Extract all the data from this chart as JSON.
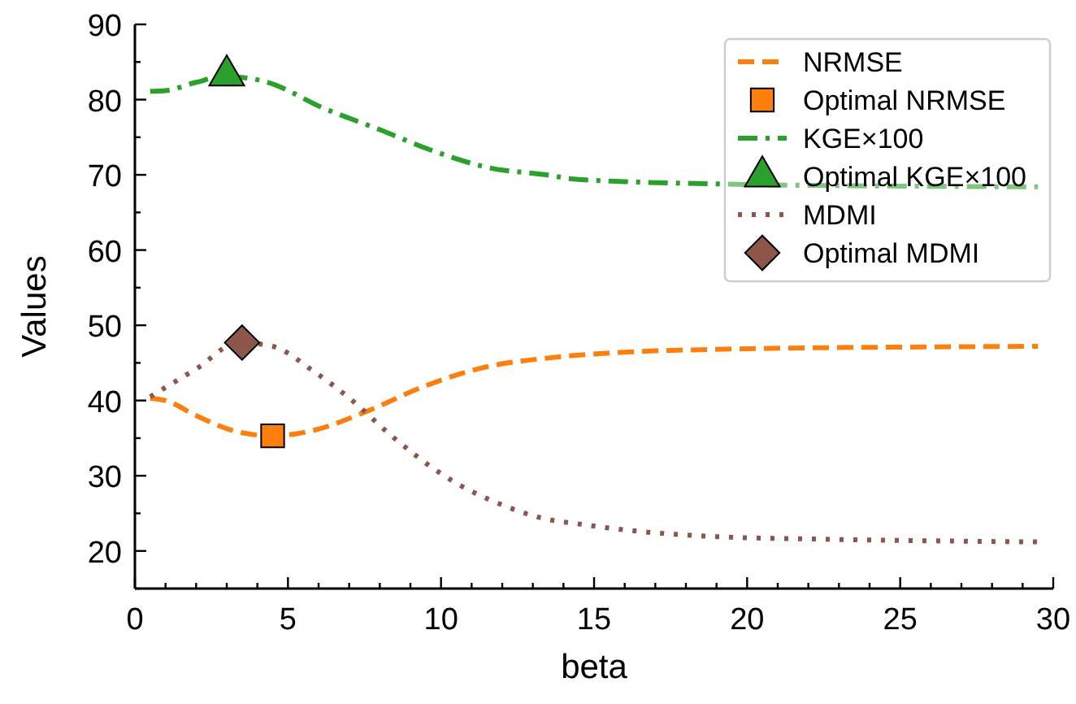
{
  "chart_data": {
    "type": "line",
    "xlabel": "beta",
    "ylabel": "Values",
    "xlim": [
      0,
      30
    ],
    "ylim": [
      15,
      90
    ],
    "xticks": [
      0,
      {
        "value": 1,
        "label": null
      },
      {
        "value": 2,
        "label": null
      },
      {
        "value": 3,
        "label": null
      },
      {
        "value": 4,
        "label": null
      },
      5,
      {
        "value": 6,
        "label": null
      },
      {
        "value": 7,
        "label": null
      },
      {
        "value": 8,
        "label": null
      },
      {
        "value": 9,
        "label": null
      },
      10,
      {
        "value": 11,
        "label": null
      },
      {
        "value": 12,
        "label": null
      },
      {
        "value": 13,
        "label": null
      },
      {
        "value": 14,
        "label": null
      },
      15,
      {
        "value": 16,
        "label": null
      },
      {
        "value": 17,
        "label": null
      },
      {
        "value": 18,
        "label": null
      },
      {
        "value": 19,
        "label": null
      },
      20,
      {
        "value": 21,
        "label": null
      },
      {
        "value": 22,
        "label": null
      },
      {
        "value": 23,
        "label": null
      },
      {
        "value": 24,
        "label": null
      },
      25,
      {
        "value": 26,
        "label": null
      },
      {
        "value": 27,
        "label": null
      },
      {
        "value": 28,
        "label": null
      },
      {
        "value": 29,
        "label": null
      },
      30
    ],
    "yticks": [
      {
        "value": 15,
        "label": null
      },
      20,
      {
        "value": 25,
        "label": null
      },
      30,
      {
        "value": 35,
        "label": null
      },
      40,
      {
        "value": 45,
        "label": null
      },
      50,
      {
        "value": 55,
        "label": null
      },
      60,
      {
        "value": 65,
        "label": null
      },
      70,
      {
        "value": 75,
        "label": null
      },
      80,
      {
        "value": 85,
        "label": null
      },
      90
    ],
    "grid": false,
    "legend": "top right",
    "series": [
      {
        "name": "NRMSE",
        "line_style": "dashed",
        "color": "#ff7f0e",
        "x": [
          0.5,
          1,
          2,
          3.2,
          4.5,
          5.8,
          7.6,
          9.4,
          11.2,
          13.6,
          14.7,
          17,
          19,
          22,
          25,
          29.5
        ],
        "values": [
          40.3,
          40,
          38,
          36,
          35.3,
          36,
          38.6,
          41.8,
          44.2,
          45.7,
          46.1,
          46.6,
          46.8,
          47,
          47.1,
          47.2
        ]
      },
      {
        "name": "Optimal NRMSE",
        "type": "scatter",
        "marker": "square",
        "color": "#ff7f0e",
        "x": [
          4.5
        ],
        "values": [
          35.3
        ]
      },
      {
        "name": "KGE×100",
        "line_style": "dashdot",
        "color": "#2ca02c",
        "x": [
          0.5,
          1,
          2,
          2.9,
          4.25,
          6.2,
          8,
          9.8,
          11.5,
          13.6,
          14.2,
          16,
          19,
          22,
          25,
          29.5
        ],
        "values": [
          81.1,
          81.2,
          82.3,
          83.1,
          82.4,
          78.8,
          76,
          73.1,
          71,
          69.9,
          69.5,
          69.1,
          68.8,
          68.6,
          68.5,
          68.4
        ]
      },
      {
        "name": "Optimal KGE×100",
        "type": "scatter",
        "marker": "triangle",
        "color": "#2ca02c",
        "x": [
          3
        ],
        "values": [
          83.2
        ]
      },
      {
        "name": "MDMI",
        "line_style": "dotted",
        "color": "#8c564b",
        "x": [
          0.5,
          2,
          3.4,
          4.5,
          5.8,
          7.1,
          8.3,
          10.1,
          12.2,
          13.6,
          14.3,
          16,
          19,
          22,
          25,
          29.5
        ],
        "values": [
          40.5,
          44.2,
          47.7,
          47.2,
          44,
          40,
          35.6,
          30,
          25.8,
          24.1,
          23.7,
          22.8,
          21.9,
          21.6,
          21.4,
          21.2
        ]
      },
      {
        "name": "Optimal MDMI",
        "type": "scatter",
        "marker": "diamond",
        "color": "#8c564b",
        "x": [
          3.5
        ],
        "values": [
          47.7
        ]
      }
    ]
  }
}
